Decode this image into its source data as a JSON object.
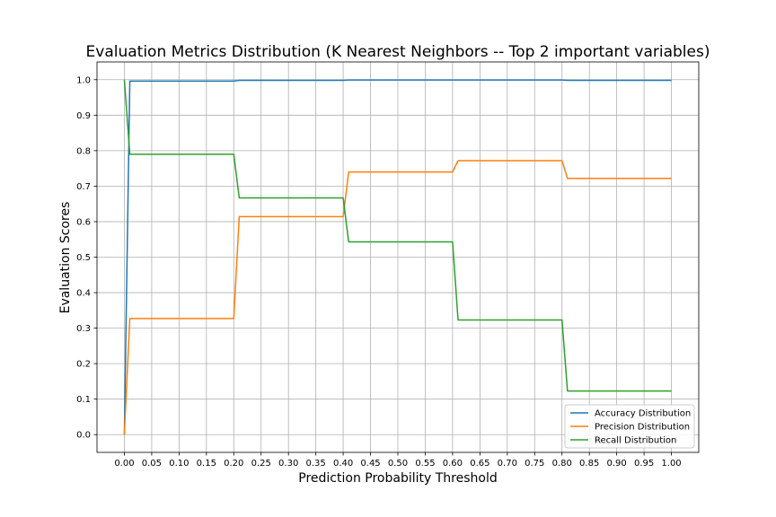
{
  "chart_data": {
    "type": "line",
    "title": "Evaluation Metrics Distribution (K Nearest Neighbors -- Top 2 important variables)",
    "xlabel": "Prediction Probability Threshold",
    "ylabel": "Evaluation Scores",
    "xlim": [
      -0.05,
      1.05
    ],
    "ylim": [
      -0.05,
      1.05
    ],
    "xticks": [
      0.0,
      0.05,
      0.1,
      0.15,
      0.2,
      0.25,
      0.3,
      0.35,
      0.4,
      0.45,
      0.5,
      0.55,
      0.6,
      0.65,
      0.7,
      0.75,
      0.8,
      0.85,
      0.9,
      0.95,
      1.0
    ],
    "xtick_labels": [
      "0.00",
      "0.05",
      "0.10",
      "0.15",
      "0.20",
      "0.25",
      "0.30",
      "0.35",
      "0.40",
      "0.45",
      "0.50",
      "0.55",
      "0.60",
      "0.65",
      "0.70",
      "0.75",
      "0.80",
      "0.85",
      "0.90",
      "0.95",
      "1.00"
    ],
    "yticks": [
      0.0,
      0.1,
      0.2,
      0.3,
      0.4,
      0.5,
      0.6,
      0.7,
      0.8,
      0.9,
      1.0
    ],
    "ytick_labels": [
      "0.0",
      "0.1",
      "0.2",
      "0.3",
      "0.4",
      "0.5",
      "0.6",
      "0.7",
      "0.8",
      "0.9",
      "1.0"
    ],
    "grid": true,
    "legend_position": "lower-right",
    "x": [
      0.0,
      0.01,
      0.02,
      0.03,
      0.04,
      0.05,
      0.06,
      0.07,
      0.08,
      0.09,
      0.1,
      0.11,
      0.12,
      0.13,
      0.14,
      0.15,
      0.16,
      0.17,
      0.18,
      0.19,
      0.2,
      0.21,
      0.22,
      0.23,
      0.24,
      0.25,
      0.26,
      0.27,
      0.28,
      0.29,
      0.3,
      0.31,
      0.32,
      0.33,
      0.34,
      0.35,
      0.36,
      0.37,
      0.38,
      0.39,
      0.4,
      0.41,
      0.42,
      0.43,
      0.44,
      0.45,
      0.46,
      0.47,
      0.48,
      0.49,
      0.5,
      0.51,
      0.52,
      0.53,
      0.54,
      0.55,
      0.56,
      0.57,
      0.58,
      0.59,
      0.6,
      0.61,
      0.62,
      0.63,
      0.64,
      0.65,
      0.66,
      0.67,
      0.68,
      0.69,
      0.7,
      0.71,
      0.72,
      0.73,
      0.74,
      0.75,
      0.76,
      0.77,
      0.78,
      0.79,
      0.8,
      0.81,
      0.82,
      0.83,
      0.84,
      0.85,
      0.86,
      0.87,
      0.88,
      0.89,
      0.9,
      0.91,
      0.92,
      0.93,
      0.94,
      0.95,
      0.96,
      0.97,
      0.98,
      0.99,
      1.0
    ],
    "series": [
      {
        "name": "Accuracy Distribution",
        "color": "#1f77b4",
        "values": [
          0.0,
          0.996,
          0.996,
          0.996,
          0.996,
          0.996,
          0.996,
          0.996,
          0.996,
          0.996,
          0.996,
          0.996,
          0.996,
          0.996,
          0.996,
          0.996,
          0.996,
          0.996,
          0.996,
          0.996,
          0.996,
          0.998,
          0.998,
          0.998,
          0.998,
          0.998,
          0.998,
          0.998,
          0.998,
          0.998,
          0.998,
          0.998,
          0.998,
          0.998,
          0.998,
          0.998,
          0.998,
          0.998,
          0.998,
          0.998,
          0.998,
          0.999,
          0.999,
          0.999,
          0.999,
          0.999,
          0.999,
          0.999,
          0.999,
          0.999,
          0.999,
          0.999,
          0.999,
          0.999,
          0.999,
          0.999,
          0.999,
          0.999,
          0.999,
          0.999,
          0.999,
          0.999,
          0.999,
          0.999,
          0.999,
          0.999,
          0.999,
          0.999,
          0.999,
          0.999,
          0.999,
          0.999,
          0.999,
          0.999,
          0.999,
          0.999,
          0.999,
          0.999,
          0.999,
          0.999,
          0.999,
          0.998,
          0.998,
          0.998,
          0.998,
          0.998,
          0.998,
          0.998,
          0.998,
          0.998,
          0.998,
          0.998,
          0.998,
          0.998,
          0.998,
          0.998,
          0.998,
          0.998,
          0.998,
          0.998,
          0.998
        ]
      },
      {
        "name": "Precision Distribution",
        "color": "#ff7f0e",
        "values": [
          0.0,
          0.327,
          0.327,
          0.327,
          0.327,
          0.327,
          0.327,
          0.327,
          0.327,
          0.327,
          0.327,
          0.327,
          0.327,
          0.327,
          0.327,
          0.327,
          0.327,
          0.327,
          0.327,
          0.327,
          0.327,
          0.614,
          0.614,
          0.614,
          0.614,
          0.614,
          0.614,
          0.614,
          0.614,
          0.614,
          0.614,
          0.614,
          0.614,
          0.614,
          0.614,
          0.614,
          0.614,
          0.614,
          0.614,
          0.614,
          0.614,
          0.74,
          0.74,
          0.74,
          0.74,
          0.74,
          0.74,
          0.74,
          0.74,
          0.74,
          0.74,
          0.74,
          0.74,
          0.74,
          0.74,
          0.74,
          0.74,
          0.74,
          0.74,
          0.74,
          0.74,
          0.772,
          0.772,
          0.772,
          0.772,
          0.772,
          0.772,
          0.772,
          0.772,
          0.772,
          0.772,
          0.772,
          0.772,
          0.772,
          0.772,
          0.772,
          0.772,
          0.772,
          0.772,
          0.772,
          0.772,
          0.722,
          0.722,
          0.722,
          0.722,
          0.722,
          0.722,
          0.722,
          0.722,
          0.722,
          0.722,
          0.722,
          0.722,
          0.722,
          0.722,
          0.722,
          0.722,
          0.722,
          0.722,
          0.722,
          0.722
        ]
      },
      {
        "name": "Recall Distribution",
        "color": "#2ca02c",
        "values": [
          1.0,
          0.79,
          0.79,
          0.79,
          0.79,
          0.79,
          0.79,
          0.79,
          0.79,
          0.79,
          0.79,
          0.79,
          0.79,
          0.79,
          0.79,
          0.79,
          0.79,
          0.79,
          0.79,
          0.79,
          0.79,
          0.667,
          0.667,
          0.667,
          0.667,
          0.667,
          0.667,
          0.667,
          0.667,
          0.667,
          0.667,
          0.667,
          0.667,
          0.667,
          0.667,
          0.667,
          0.667,
          0.667,
          0.667,
          0.667,
          0.667,
          0.543,
          0.543,
          0.543,
          0.543,
          0.543,
          0.543,
          0.543,
          0.543,
          0.543,
          0.543,
          0.543,
          0.543,
          0.543,
          0.543,
          0.543,
          0.543,
          0.543,
          0.543,
          0.543,
          0.543,
          0.323,
          0.323,
          0.323,
          0.323,
          0.323,
          0.323,
          0.323,
          0.323,
          0.323,
          0.323,
          0.323,
          0.323,
          0.323,
          0.323,
          0.323,
          0.323,
          0.323,
          0.323,
          0.323,
          0.323,
          0.123,
          0.123,
          0.123,
          0.123,
          0.123,
          0.123,
          0.123,
          0.123,
          0.123,
          0.123,
          0.123,
          0.123,
          0.123,
          0.123,
          0.123,
          0.123,
          0.123,
          0.123,
          0.123,
          0.123
        ]
      }
    ]
  }
}
